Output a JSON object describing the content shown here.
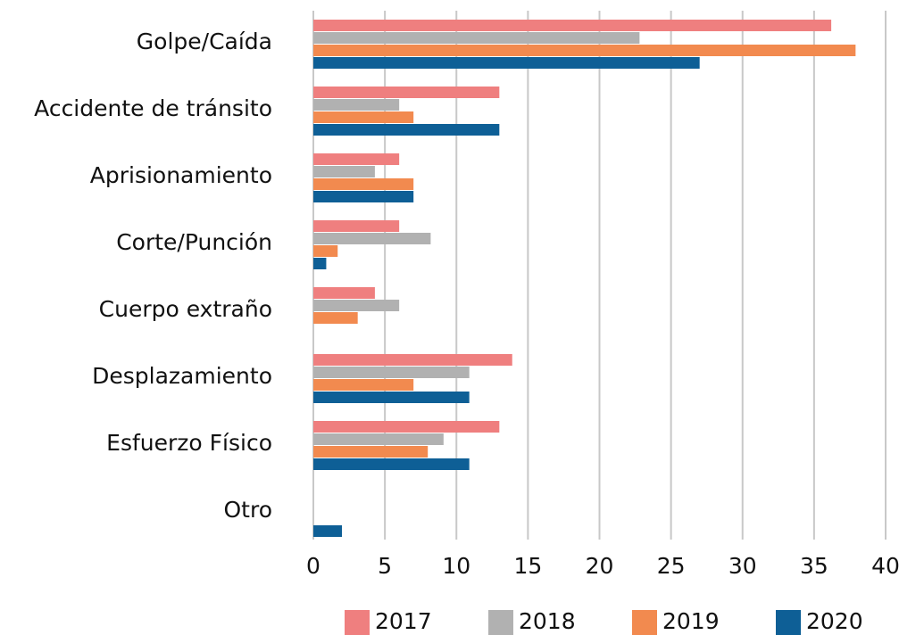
{
  "chart_data": {
    "type": "hbar",
    "categories": [
      "Golpe/Caída",
      "Accidente de tránsito",
      "Aprisionamiento",
      "Corte/Punción",
      "Cuerpo extraño",
      "Desplazamiento",
      "Esfuerzo Físico",
      "Otro"
    ],
    "series": [
      {
        "name": "2017",
        "color": "#ef7f7f",
        "values": [
          36.2,
          13,
          6,
          6,
          4.3,
          13.9,
          13,
          null
        ]
      },
      {
        "name": "2018",
        "color": "#b1b1b1",
        "values": [
          22.8,
          6,
          4.3,
          8.2,
          6,
          10.9,
          9.1,
          null
        ]
      },
      {
        "name": "2019",
        "color": "#f28a4f",
        "values": [
          37.9,
          7,
          7,
          1.7,
          3.1,
          7,
          8,
          null
        ]
      },
      {
        "name": "2020",
        "color": "#0e5f96",
        "values": [
          27,
          13,
          7,
          0.9,
          null,
          10.9,
          10.9,
          2
        ]
      }
    ],
    "xlim": [
      0,
      40
    ],
    "xticks": [
      0,
      5,
      10,
      15,
      20,
      25,
      30,
      35,
      40
    ],
    "grid": true,
    "legend": "bottom"
  }
}
